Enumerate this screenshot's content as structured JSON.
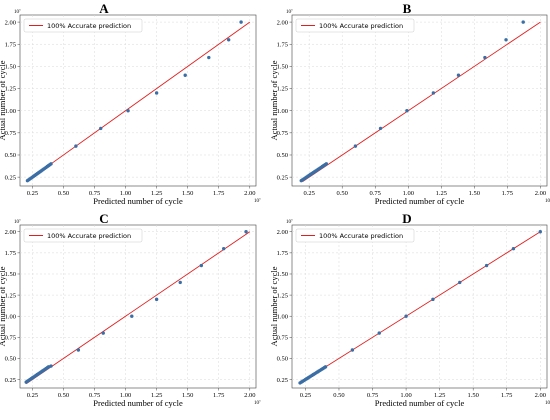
{
  "chart_data": [
    {
      "type": "scatter",
      "title": "A",
      "xlabel": "Predicted number of cycle",
      "ylabel": "Actual number of cycle",
      "axis_exponent": "10⁷",
      "xlim": [
        0.15,
        2.05
      ],
      "ylim": [
        0.15,
        2.08
      ],
      "xticks": [
        "0.25",
        "0.50",
        "0.75",
        "1.00",
        "1.25",
        "1.50",
        "1.75",
        "2.00"
      ],
      "yticks": [
        "0.25",
        "0.50",
        "0.75",
        "1.00",
        "1.25",
        "1.50",
        "1.75",
        "2.00"
      ],
      "xtick_values": [
        0.25,
        0.5,
        0.75,
        1.0,
        1.25,
        1.5,
        1.75,
        2.0
      ],
      "ytick_values": [
        0.25,
        0.5,
        0.75,
        1.0,
        1.25,
        1.5,
        1.75,
        2.0
      ],
      "grid": true,
      "legend": "top-left",
      "legend_label": "100% Accurate prediction",
      "reference_line": {
        "name": "100% Accurate prediction",
        "color": "#e02020",
        "from": [
          0.2,
          0.2
        ],
        "to": [
          2.0,
          2.0
        ]
      },
      "point_color": "#3b6ea5",
      "x": [
        0.21,
        0.22,
        0.23,
        0.24,
        0.25,
        0.26,
        0.27,
        0.28,
        0.29,
        0.3,
        0.31,
        0.32,
        0.33,
        0.34,
        0.35,
        0.36,
        0.37,
        0.38,
        0.39,
        0.4,
        0.6,
        0.8,
        1.02,
        1.25,
        1.48,
        1.67,
        1.83,
        1.93
      ],
      "y": [
        0.21,
        0.22,
        0.23,
        0.24,
        0.25,
        0.26,
        0.27,
        0.28,
        0.29,
        0.3,
        0.31,
        0.32,
        0.33,
        0.34,
        0.35,
        0.36,
        0.37,
        0.38,
        0.39,
        0.4,
        0.6,
        0.8,
        1.0,
        1.2,
        1.4,
        1.6,
        1.8,
        2.0
      ]
    },
    {
      "type": "scatter",
      "title": "B",
      "xlabel": "Predicted number of cycle",
      "ylabel": "Actual number of cycle",
      "axis_exponent": "10⁷",
      "xlim": [
        0.12,
        2.05
      ],
      "ylim": [
        0.15,
        2.08
      ],
      "xticks": [
        "0.25",
        "0.50",
        "0.75",
        "1.00",
        "1.25",
        "1.50",
        "1.75",
        "2.00"
      ],
      "yticks": [
        "0.25",
        "0.50",
        "0.75",
        "1.00",
        "1.25",
        "1.50",
        "1.75",
        "2.00"
      ],
      "xtick_values": [
        0.25,
        0.5,
        0.75,
        1.0,
        1.25,
        1.5,
        1.75,
        2.0
      ],
      "ytick_values": [
        0.25,
        0.5,
        0.75,
        1.0,
        1.25,
        1.5,
        1.75,
        2.0
      ],
      "grid": true,
      "legend": "top-left",
      "legend_label": "100% Accurate prediction",
      "reference_line": {
        "name": "100% Accurate prediction",
        "color": "#e02020",
        "from": [
          0.2,
          0.2
        ],
        "to": [
          2.0,
          2.0
        ]
      },
      "point_color": "#3b6ea5",
      "x": [
        0.19,
        0.2,
        0.21,
        0.22,
        0.23,
        0.24,
        0.25,
        0.26,
        0.27,
        0.28,
        0.29,
        0.3,
        0.31,
        0.32,
        0.33,
        0.34,
        0.35,
        0.36,
        0.37,
        0.38,
        0.6,
        0.79,
        0.99,
        1.19,
        1.38,
        1.58,
        1.74,
        1.87
      ],
      "y": [
        0.21,
        0.22,
        0.23,
        0.24,
        0.25,
        0.26,
        0.27,
        0.28,
        0.29,
        0.3,
        0.31,
        0.32,
        0.33,
        0.34,
        0.35,
        0.36,
        0.37,
        0.38,
        0.39,
        0.4,
        0.6,
        0.8,
        1.0,
        1.2,
        1.4,
        1.6,
        1.8,
        2.0
      ]
    },
    {
      "type": "scatter",
      "title": "C",
      "xlabel": "Predicted number of cycle",
      "ylabel": "Actual number of cycle",
      "axis_exponent": "10⁷",
      "xlim": [
        0.15,
        2.05
      ],
      "ylim": [
        0.15,
        2.08
      ],
      "xticks": [
        "0.25",
        "0.50",
        "0.75",
        "1.00",
        "1.25",
        "1.50",
        "1.75",
        "2.00"
      ],
      "yticks": [
        "0.25",
        "0.50",
        "0.75",
        "1.00",
        "1.25",
        "1.50",
        "1.75",
        "2.00"
      ],
      "xtick_values": [
        0.25,
        0.5,
        0.75,
        1.0,
        1.25,
        1.5,
        1.75,
        2.0
      ],
      "ytick_values": [
        0.25,
        0.5,
        0.75,
        1.0,
        1.25,
        1.5,
        1.75,
        2.0
      ],
      "grid": true,
      "legend": "top-left",
      "legend_label": "100% Accurate prediction",
      "reference_line": {
        "name": "100% Accurate prediction",
        "color": "#e02020",
        "from": [
          0.2,
          0.2
        ],
        "to": [
          2.0,
          2.0
        ]
      },
      "point_color": "#3b6ea5",
      "x": [
        0.2,
        0.21,
        0.22,
        0.23,
        0.24,
        0.25,
        0.26,
        0.27,
        0.28,
        0.29,
        0.3,
        0.31,
        0.32,
        0.33,
        0.34,
        0.35,
        0.36,
        0.37,
        0.38,
        0.4,
        0.62,
        0.82,
        1.05,
        1.25,
        1.44,
        1.61,
        1.79,
        1.97
      ],
      "y": [
        0.22,
        0.23,
        0.24,
        0.25,
        0.26,
        0.27,
        0.28,
        0.29,
        0.3,
        0.31,
        0.32,
        0.33,
        0.34,
        0.35,
        0.36,
        0.37,
        0.38,
        0.39,
        0.4,
        0.41,
        0.6,
        0.8,
        1.0,
        1.2,
        1.4,
        1.6,
        1.8,
        2.0
      ]
    },
    {
      "type": "scatter",
      "title": "D",
      "xlabel": "Predicted number of cycle",
      "ylabel": "Actual number of cycle",
      "axis_exponent": "10⁷",
      "xlim": [
        0.15,
        2.05
      ],
      "ylim": [
        0.15,
        2.08
      ],
      "xticks": [
        "0.25",
        "0.50",
        "0.75",
        "1.00",
        "1.25",
        "1.50",
        "1.75",
        "2.00"
      ],
      "yticks": [
        "0.25",
        "0.50",
        "0.75",
        "1.00",
        "1.25",
        "1.50",
        "1.75",
        "2.00"
      ],
      "xtick_values": [
        0.25,
        0.5,
        0.75,
        1.0,
        1.25,
        1.5,
        1.75,
        2.0
      ],
      "ytick_values": [
        0.25,
        0.5,
        0.75,
        1.0,
        1.25,
        1.5,
        1.75,
        2.0
      ],
      "grid": true,
      "legend": "top-left",
      "legend_label": "100% Accurate prediction",
      "reference_line": {
        "name": "100% Accurate prediction",
        "color": "#e02020",
        "from": [
          0.2,
          0.2
        ],
        "to": [
          2.0,
          2.0
        ]
      },
      "point_color": "#3b6ea5",
      "x": [
        0.21,
        0.22,
        0.23,
        0.24,
        0.25,
        0.26,
        0.27,
        0.28,
        0.29,
        0.3,
        0.31,
        0.32,
        0.33,
        0.34,
        0.35,
        0.36,
        0.37,
        0.38,
        0.39,
        0.4,
        0.6,
        0.8,
        1.0,
        1.2,
        1.4,
        1.6,
        1.8,
        2.0
      ],
      "y": [
        0.21,
        0.22,
        0.23,
        0.24,
        0.25,
        0.26,
        0.27,
        0.28,
        0.29,
        0.3,
        0.31,
        0.32,
        0.33,
        0.34,
        0.35,
        0.36,
        0.37,
        0.38,
        0.39,
        0.4,
        0.6,
        0.8,
        1.0,
        1.2,
        1.4,
        1.6,
        1.8,
        2.0
      ]
    }
  ]
}
